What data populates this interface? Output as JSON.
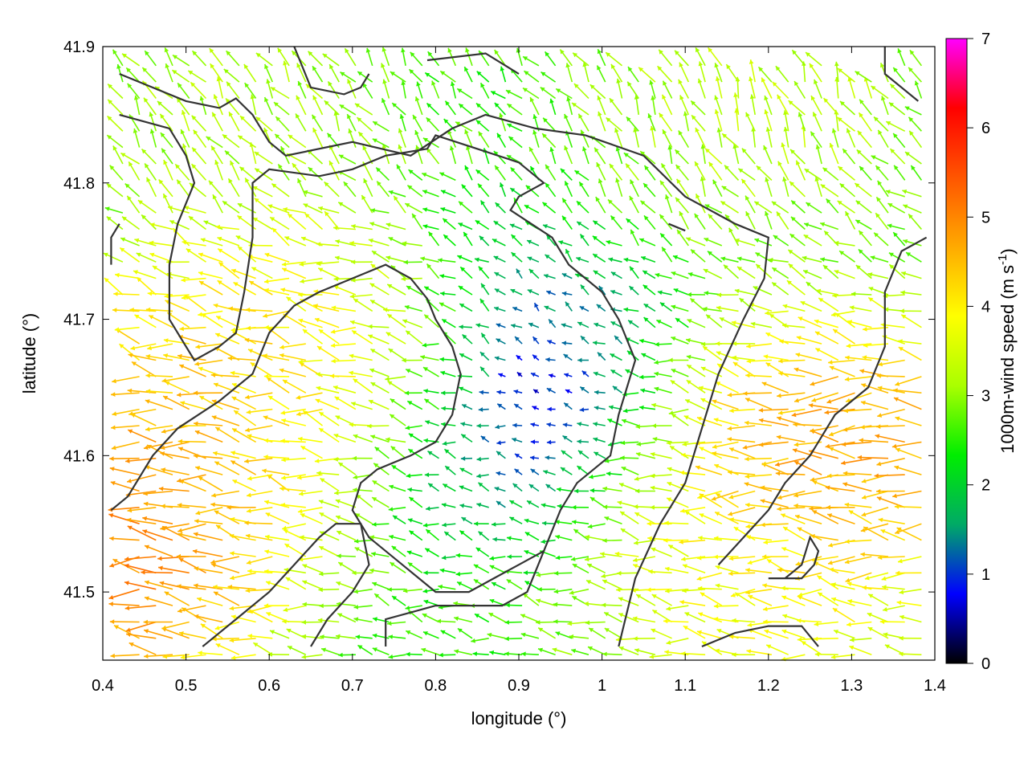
{
  "chart_data": {
    "type": "quiver",
    "xlabel": "longitude (°)",
    "ylabel": "latitude (°)",
    "xlim": [
      0.4,
      1.4
    ],
    "ylim": [
      41.45,
      41.9
    ],
    "x_ticks": [
      "0.4",
      "0.5",
      "0.6",
      "0.7",
      "0.8",
      "0.9",
      "1",
      "1.1",
      "1.2",
      "1.3",
      "1.4"
    ],
    "y_ticks": [
      "41.5",
      "41.6",
      "41.7",
      "41.8",
      "41.9"
    ],
    "colorbar": {
      "label": "1000m-wind speed (m s",
      "label_sup": "-1",
      "label_end": ")",
      "range": [
        0,
        7
      ],
      "ticks": [
        "0",
        "1",
        "2",
        "3",
        "4",
        "5",
        "6",
        "7"
      ],
      "palette": [
        "#000000",
        "#0000ff",
        "#00aa66",
        "#00ee00",
        "#aaff00",
        "#ffff00",
        "#ffaa00",
        "#ff5500",
        "#ff0000",
        "#ff00ff"
      ]
    },
    "wind_field": {
      "grid_step_lon": 0.02,
      "grid_step_lat": 0.012,
      "calm_center": [
        0.9,
        41.65
      ],
      "strong_zones": [
        {
          "center": [
            0.42,
            41.52
          ],
          "speed": 5.8,
          "direction_deg": 180
        },
        {
          "center": [
            0.46,
            41.62
          ],
          "speed": 5.0,
          "direction_deg": 160
        },
        {
          "center": [
            0.62,
            41.68
          ],
          "speed": 4.5,
          "direction_deg": 165
        },
        {
          "center": [
            1.3,
            41.6
          ],
          "speed": 5.5,
          "direction_deg": 180
        },
        {
          "center": [
            1.2,
            41.5
          ],
          "speed": 4.2,
          "direction_deg": 170
        },
        {
          "center": [
            0.55,
            41.86
          ],
          "speed": 3.3,
          "direction_deg": 110
        },
        {
          "center": [
            1.2,
            41.86
          ],
          "speed": 3.5,
          "direction_deg": 100
        }
      ]
    },
    "contours": [
      [
        [
          0.42,
          41.88
        ],
        [
          0.5,
          41.86
        ],
        [
          0.54,
          41.855
        ],
        [
          0.56,
          41.862
        ],
        [
          0.58,
          41.85
        ],
        [
          0.6,
          41.83
        ],
        [
          0.62,
          41.82
        ],
        [
          0.7,
          41.83
        ],
        [
          0.77,
          41.82
        ],
        [
          0.82,
          41.84
        ],
        [
          0.86,
          41.85
        ],
        [
          0.92,
          41.84
        ],
        [
          0.98,
          41.835
        ],
        [
          1.05,
          41.82
        ],
        [
          1.1,
          41.79
        ],
        [
          1.16,
          41.77
        ],
        [
          1.2,
          41.76
        ],
        [
          1.195,
          41.73
        ],
        [
          1.17,
          41.7
        ],
        [
          1.14,
          41.66
        ],
        [
          1.12,
          41.62
        ],
        [
          1.1,
          41.58
        ],
        [
          1.07,
          41.55
        ],
        [
          1.04,
          41.51
        ],
        [
          1.02,
          41.46
        ]
      ],
      [
        [
          0.42,
          41.85
        ],
        [
          0.48,
          41.84
        ],
        [
          0.5,
          41.82
        ],
        [
          0.51,
          41.8
        ],
        [
          0.49,
          41.77
        ],
        [
          0.48,
          41.74
        ],
        [
          0.48,
          41.7
        ],
        [
          0.51,
          41.67
        ],
        [
          0.54,
          41.68
        ],
        [
          0.56,
          41.69
        ],
        [
          0.57,
          41.72
        ],
        [
          0.58,
          41.76
        ],
        [
          0.58,
          41.8
        ],
        [
          0.6,
          41.81
        ],
        [
          0.66,
          41.805
        ],
        [
          0.7,
          41.81
        ],
        [
          0.74,
          41.82
        ],
        [
          0.79,
          41.825
        ],
        [
          0.8,
          41.835
        ],
        [
          0.85,
          41.825
        ],
        [
          0.9,
          41.815
        ],
        [
          0.93,
          41.8
        ],
        [
          0.9,
          41.79
        ],
        [
          0.89,
          41.78
        ],
        [
          0.94,
          41.76
        ],
        [
          0.96,
          41.74
        ],
        [
          1.0,
          41.72
        ],
        [
          1.02,
          41.7
        ],
        [
          1.04,
          41.67
        ],
        [
          1.02,
          41.63
        ],
        [
          1.01,
          41.6
        ],
        [
          0.97,
          41.58
        ],
        [
          0.95,
          41.56
        ],
        [
          0.93,
          41.53
        ],
        [
          0.91,
          41.5
        ],
        [
          0.88,
          41.49
        ],
        [
          0.84,
          41.49
        ],
        [
          0.8,
          41.49
        ],
        [
          0.74,
          41.48
        ],
        [
          0.74,
          41.46
        ]
      ],
      [
        [
          0.41,
          41.56
        ],
        [
          0.43,
          41.57
        ],
        [
          0.46,
          41.6
        ],
        [
          0.49,
          41.62
        ],
        [
          0.54,
          41.64
        ],
        [
          0.58,
          41.66
        ],
        [
          0.6,
          41.69
        ],
        [
          0.63,
          41.71
        ],
        [
          0.66,
          41.72
        ],
        [
          0.7,
          41.73
        ],
        [
          0.74,
          41.74
        ],
        [
          0.77,
          41.73
        ],
        [
          0.79,
          41.715
        ],
        [
          0.8,
          41.7
        ],
        [
          0.82,
          41.68
        ],
        [
          0.83,
          41.66
        ],
        [
          0.82,
          41.63
        ],
        [
          0.8,
          41.61
        ],
        [
          0.77,
          41.6
        ],
        [
          0.73,
          41.59
        ],
        [
          0.71,
          41.58
        ],
        [
          0.7,
          41.56
        ],
        [
          0.72,
          41.54
        ],
        [
          0.76,
          41.52
        ],
        [
          0.8,
          41.5
        ],
        [
          0.84,
          41.5
        ],
        [
          0.87,
          41.51
        ],
        [
          0.9,
          41.52
        ],
        [
          0.93,
          41.53
        ]
      ],
      [
        [
          0.52,
          41.46
        ],
        [
          0.56,
          41.48
        ],
        [
          0.6,
          41.5
        ],
        [
          0.63,
          41.52
        ],
        [
          0.66,
          41.54
        ],
        [
          0.68,
          41.55
        ],
        [
          0.71,
          41.55
        ],
        [
          0.72,
          41.52
        ],
        [
          0.7,
          41.5
        ],
        [
          0.67,
          41.48
        ],
        [
          0.65,
          41.46
        ]
      ],
      [
        [
          1.12,
          41.46
        ],
        [
          1.16,
          41.47
        ],
        [
          1.2,
          41.475
        ],
        [
          1.24,
          41.475
        ],
        [
          1.26,
          41.46
        ]
      ],
      [
        [
          1.2,
          41.51
        ],
        [
          1.24,
          41.51
        ],
        [
          1.255,
          41.52
        ],
        [
          1.26,
          41.53
        ],
        [
          1.25,
          41.54
        ],
        [
          1.24,
          41.52
        ],
        [
          1.22,
          41.51
        ]
      ],
      [
        [
          1.34,
          41.9
        ],
        [
          1.34,
          41.88
        ],
        [
          1.38,
          41.86
        ]
      ],
      [
        [
          1.39,
          41.76
        ],
        [
          1.36,
          41.75
        ],
        [
          1.34,
          41.72
        ],
        [
          1.34,
          41.68
        ],
        [
          1.32,
          41.65
        ],
        [
          1.28,
          41.63
        ],
        [
          1.25,
          41.6
        ],
        [
          1.22,
          41.58
        ],
        [
          1.2,
          41.56
        ],
        [
          1.17,
          41.54
        ],
        [
          1.14,
          41.52
        ]
      ],
      [
        [
          0.41,
          41.74
        ],
        [
          0.41,
          41.76
        ],
        [
          0.42,
          41.77
        ]
      ],
      [
        [
          0.63,
          41.9
        ],
        [
          0.65,
          41.87
        ],
        [
          0.69,
          41.865
        ],
        [
          0.71,
          41.87
        ],
        [
          0.72,
          41.88
        ]
      ],
      [
        [
          0.79,
          41.89
        ],
        [
          0.86,
          41.895
        ],
        [
          0.9,
          41.88
        ]
      ],
      [
        [
          1.08,
          41.77
        ],
        [
          1.1,
          41.765
        ]
      ]
    ]
  }
}
